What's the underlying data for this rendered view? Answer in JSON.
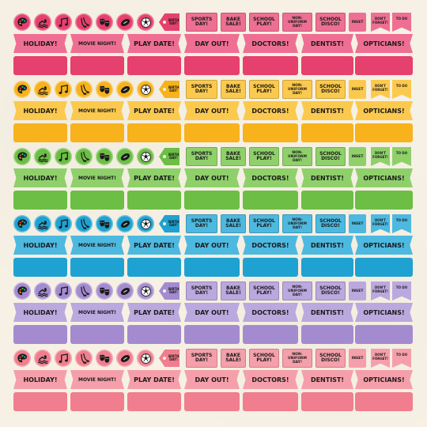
{
  "labels": {
    "birthday": "BIRTH DAY!",
    "sports_day": "SPORTS DAY!",
    "bake_sale": "BAKE SALE!",
    "school_play": "SCHOOL PLAY!",
    "non_uniform": "NON- UNIFORM DAY!",
    "school_disco": "SCHOOL DISCO!",
    "inset": "INSET",
    "dont_forget": "DON'T FORGET!",
    "to_do": "TO DO",
    "holiday": "HOLIDAY!",
    "movie_night": "MOVIE NIGHT!",
    "play_date": "PLAY DATE!",
    "day_out": "DAY OUT!",
    "doctors": "DOCTORS!",
    "dentist": "DENTIST!",
    "opticians": "OPTICIANS!"
  },
  "icons": [
    "palette-icon",
    "swimmer-icon",
    "music-notes-icon",
    "ballet-shoes-icon",
    "theatre-masks-icon",
    "rugby-ball-icon",
    "football-icon"
  ],
  "colors": {
    "pink": {
      "main": "#e6406e",
      "light": "#ee6f93"
    },
    "yellow": {
      "main": "#f7b21c",
      "light": "#fbc94e"
    },
    "green": {
      "main": "#6cbe45",
      "light": "#8fd06b"
    },
    "blue": {
      "main": "#1fa2d1",
      "light": "#4db9e0"
    },
    "purple": {
      "main": "#a48bd0",
      "light": "#bba8de"
    },
    "lightpink": {
      "main": "#f07e8e",
      "light": "#f59fab"
    }
  },
  "rows": [
    {
      "color": "pink"
    },
    {
      "color": "yellow"
    },
    {
      "color": "green"
    },
    {
      "color": "blue"
    },
    {
      "color": "purple"
    },
    {
      "color": "lightpink"
    }
  ]
}
